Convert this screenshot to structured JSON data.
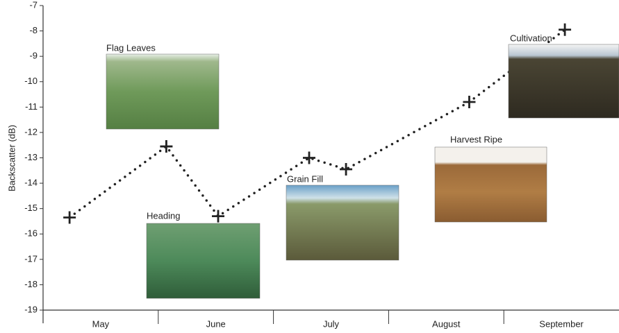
{
  "chart_data": {
    "type": "scatter",
    "y_label": "Backscatter (dB)",
    "categories": [
      "May",
      "June",
      "July",
      "August",
      "September"
    ],
    "x": [
      0.23,
      1.07,
      1.52,
      2.31,
      2.63,
      3.7,
      4.53
    ],
    "values": [
      -15.35,
      -12.55,
      -15.3,
      -13.0,
      -13.45,
      -10.8,
      -7.95
    ],
    "xlim": [
      0,
      5
    ],
    "ylim": [
      -19,
      -7
    ],
    "yticks": [
      -19,
      -18,
      -17,
      -16,
      -15,
      -14,
      -13,
      -12,
      -11,
      -10,
      -9,
      -8,
      -7
    ],
    "annotations": [
      "Flag Leaves",
      "Heading",
      "Grain Fill",
      "Harvest Ripe",
      "Cultivation"
    ],
    "color": "#222222"
  }
}
